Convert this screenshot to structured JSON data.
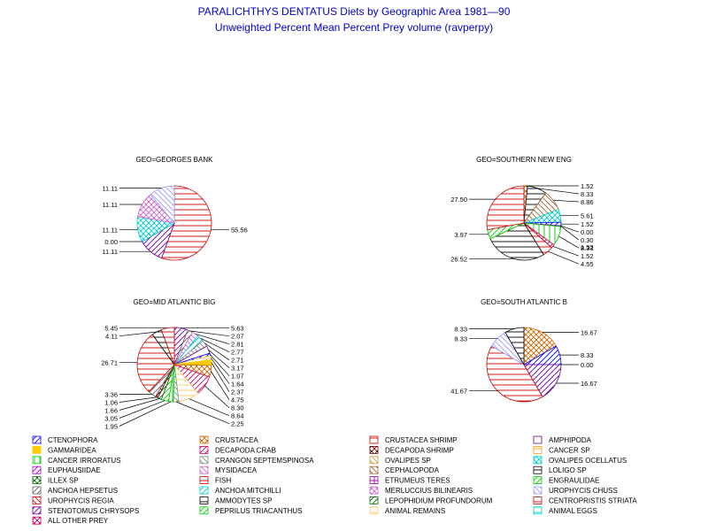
{
  "title": "PARALICHTHYS DENTATUS Diets by Geographic Area 1981—90",
  "subtitle": "Unweighted Percent Mean Percent Prey  volume (ravperpy)",
  "colors": {
    "title": "#0000cc",
    "text": "#000000",
    "leader": "#000000"
  },
  "legend_categories": [
    {
      "name": "CTENOPHORA",
      "color": "#0000ff",
      "pattern": "diag-r"
    },
    {
      "name": "CRUSTACEA",
      "color": "#cc6600",
      "pattern": "cross-diag"
    },
    {
      "name": "CRUSTACEA SHRIMP",
      "color": "#cc0000",
      "pattern": "horiz"
    },
    {
      "name": "AMPHIPODA",
      "color": "#660099",
      "pattern": "empty"
    },
    {
      "name": "GAMMARIDEA",
      "color": "#ffcc00",
      "pattern": "solid"
    },
    {
      "name": "DECAPODA CRAB",
      "color": "#cc0066",
      "pattern": "diag-r"
    },
    {
      "name": "DECAPODA SHRIMP",
      "color": "#660000",
      "pattern": "cross-diag"
    },
    {
      "name": "CANCER SP",
      "color": "#ff9900",
      "pattern": "horiz"
    },
    {
      "name": "CANCER IRRORATUS",
      "color": "#00cc00",
      "pattern": "vert"
    },
    {
      "name": "CRANGON SEPTEMSPINOSA",
      "color": "#888888",
      "pattern": "diag-l"
    },
    {
      "name": "OVALIPES SP",
      "color": "#cc9933",
      "pattern": "diag-l"
    },
    {
      "name": "OVALIPES OCELLATUS",
      "color": "#00cccc",
      "pattern": "cross-diag"
    },
    {
      "name": "EUPHAUSIIDAE",
      "color": "#9900cc",
      "pattern": "diag-r"
    },
    {
      "name": "MYSIDACEA",
      "color": "#cc66cc",
      "pattern": "diag-l"
    },
    {
      "name": "CEPHALOPODA",
      "color": "#996633",
      "pattern": "diag-l"
    },
    {
      "name": "LOLIGO SP",
      "color": "#000000",
      "pattern": "horiz"
    },
    {
      "name": "ILLEX SP",
      "color": "#006600",
      "pattern": "cross-diag"
    },
    {
      "name": "FISH",
      "color": "#cc0000",
      "pattern": "horiz"
    },
    {
      "name": "ETRUMEUS TERES",
      "color": "#990099",
      "pattern": "cross"
    },
    {
      "name": "ENGRAULIDAE",
      "color": "#00cc00",
      "pattern": "diag-r"
    },
    {
      "name": "ANCHOA HEPSETUS",
      "color": "#666666",
      "pattern": "diag-r"
    },
    {
      "name": "ANCHOA MITCHILLI",
      "color": "#00cccc",
      "pattern": "diag-r"
    },
    {
      "name": "MERLUCCIUS BILINEARIS",
      "color": "#cc66cc",
      "pattern": "cross-diag"
    },
    {
      "name": "UROPHYCIS CHUSS",
      "color": "#9999ff",
      "pattern": "diag-l"
    },
    {
      "name": "UROPHYCIS REGIA",
      "color": "#cc0000",
      "pattern": "diag-l"
    },
    {
      "name": "AMMODYTES SP",
      "color": "#000000",
      "pattern": "horiz"
    },
    {
      "name": "LEPOPHIDIUM PROFUNDORUM",
      "color": "#006600",
      "pattern": "diag-r"
    },
    {
      "name": "CENTROPRISTIS STRIATA",
      "color": "#cc0000",
      "pattern": "horiz"
    },
    {
      "name": "STENOTOMUS CHRYSOPS",
      "color": "#660099",
      "pattern": "diag-r"
    },
    {
      "name": "PEPRILUS TRIACANTHUS",
      "color": "#00cc00",
      "pattern": "diag-r"
    },
    {
      "name": "ANIMAL REMAINS",
      "color": "#ffcc66",
      "pattern": "horiz"
    },
    {
      "name": "ANIMAL EGGS",
      "color": "#00cccc",
      "pattern": "horiz"
    },
    {
      "name": "ALL OTHER PREY",
      "color": "#cc0066",
      "pattern": "cross-diag"
    }
  ],
  "chart_data": [
    {
      "type": "pie",
      "title": "GEO=GEORGES BANK",
      "slices": [
        {
          "category": "FISH",
          "value": 55.56,
          "label": "55.56"
        },
        {
          "category": "STENOTOMUS CHRYSOPS",
          "value": 11.11,
          "label": "11.11"
        },
        {
          "category": "GAMMARIDEA",
          "value": 0.0,
          "label": "0.00"
        },
        {
          "category": "OVALIPES OCELLATUS",
          "value": 11.11,
          "label": "11.11"
        },
        {
          "category": "MERLUCCIUS BILINEARIS",
          "value": 11.11,
          "label": "11.11"
        },
        {
          "category": "UROPHYCIS CHUSS",
          "value": 11.11,
          "label": "11.11"
        }
      ]
    },
    {
      "type": "pie",
      "title": "GEO=SOUTHERN NEW ENG",
      "slices": [
        {
          "category": "CRUSTACEA",
          "value": 1.52,
          "label": "1.52"
        },
        {
          "category": "LOLIGO SP",
          "value": 8.33,
          "label": "8.33"
        },
        {
          "category": "CEPHALOPODA",
          "value": 8.86,
          "label": "8.86"
        },
        {
          "category": "OVALIPES OCELLATUS",
          "value": 5.61,
          "label": "5.61"
        },
        {
          "category": "CTENOPHORA",
          "value": 1.52,
          "label": "1.52"
        },
        {
          "category": "GAMMARIDEA",
          "value": 0.0,
          "label": "0.00"
        },
        {
          "category": "AMPHIPODA",
          "value": 0.3,
          "label": "0.30"
        },
        {
          "category": "CANCER IRRORATUS",
          "value": 8.33,
          "label": "8.33"
        },
        {
          "category": "DECAPODA CRAB",
          "value": 1.52,
          "label": "1.52"
        },
        {
          "category": "CENTROPRISTIS STRIATA",
          "value": 4.55,
          "label": "4.55"
        },
        {
          "category": "AMMODYTES SP",
          "value": 26.52,
          "label": "26.52"
        },
        {
          "category": "ENGRAULIDAE",
          "value": 3.97,
          "label": "3.97"
        },
        {
          "category": "FISH",
          "value": 27.5,
          "label": "27.50"
        }
      ],
      "unplaced_labels": [
        "1.52"
      ]
    },
    {
      "type": "pie",
      "title": "GEO=MID ATLANTIC BIG",
      "slices": [
        {
          "category": "STENOTOMUS CHRYSOPS",
          "value": 5.63,
          "label": "5.63"
        },
        {
          "category": "ANCHOA HEPSETUS",
          "value": 2.07,
          "label": "2.07"
        },
        {
          "category": "MYSIDACEA",
          "value": 2.81,
          "label": "2.81"
        },
        {
          "category": "ANCHOA MITCHILLI",
          "value": 2.77,
          "label": "2.77"
        },
        {
          "category": "CRANGON SEPTEMSPINOSA",
          "value": 2.71,
          "label": "2.71"
        },
        {
          "category": "AMPHIPODA",
          "value": 3.17,
          "label": "3.17"
        },
        {
          "category": "CTENOPHORA",
          "value": 1.07,
          "label": "1.07"
        },
        {
          "category": "ANIMAL REMAINS",
          "value": 1.64,
          "label": "1.64"
        },
        {
          "category": "GAMMARIDEA",
          "value": 2.37,
          "label": "2.37"
        },
        {
          "category": "CRUSTACEA",
          "value": 4.75,
          "label": "4.75"
        },
        {
          "category": "DECAPODA CRAB",
          "value": 8.3,
          "label": "8.30"
        },
        {
          "category": "ANIMAL REMAINS",
          "value": 8.64,
          "label": "8.64"
        },
        {
          "category": "CRANGON SEPTEMSPINOSA",
          "value": 2.25,
          "label": "2.25"
        },
        {
          "category": "CANCER IRRORATUS",
          "value": 1.95,
          "label": "1.95"
        },
        {
          "category": "ENGRAULIDAE",
          "value": 3.05,
          "label": "3.05"
        },
        {
          "category": "LEPOPHIDIUM PROFUNDORUM",
          "value": 1.66,
          "label": "1.66"
        },
        {
          "category": "DECAPODA SHRIMP",
          "value": 1.06,
          "label": "1.06"
        },
        {
          "category": "ANCHOA HEPSETUS",
          "value": 3.36,
          "label": "3.36"
        },
        {
          "category": "FISH",
          "value": 26.71,
          "label": "26.71"
        },
        {
          "category": "AMMODYTES SP",
          "value": 4.11,
          "label": "4.11"
        },
        {
          "category": "CRUSTACEA SHRIMP",
          "value": 5.45,
          "label": "5.45"
        }
      ]
    },
    {
      "type": "pie",
      "title": "GEO=SOUTH ATLANTIC B",
      "slices": [
        {
          "category": "CRUSTACEA",
          "value": 16.67,
          "label": "16.67"
        },
        {
          "category": "CTENOPHORA",
          "value": 8.33,
          "label": "8.33"
        },
        {
          "category": "GAMMARIDEA",
          "value": 0.0,
          "label": "0.00"
        },
        {
          "category": "STENOTOMUS CHRYSOPS",
          "value": 16.67,
          "label": "16.67"
        },
        {
          "category": "FISH",
          "value": 41.67,
          "label": "41.67"
        },
        {
          "category": "UROPHYCIS CHUSS",
          "value": 8.33,
          "label": "8.33"
        },
        {
          "category": "AMMODYTES SP",
          "value": 8.33,
          "label": "8.33"
        }
      ]
    }
  ]
}
